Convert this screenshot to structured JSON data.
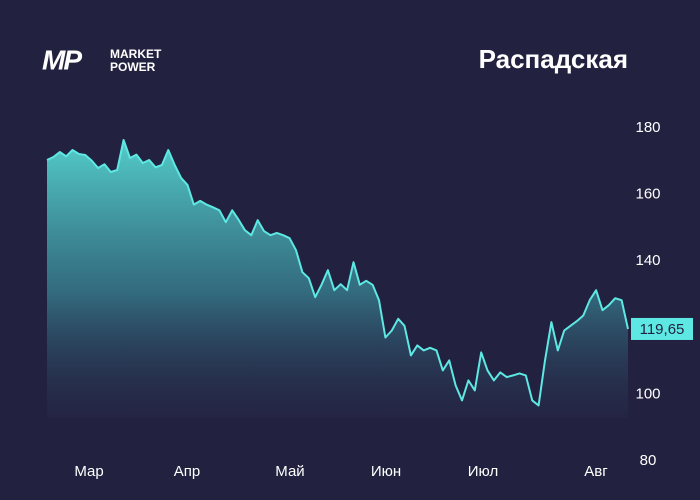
{
  "logo": {
    "mark": "MP",
    "line1": "MARKET",
    "line2": "POWER"
  },
  "chart_data": {
    "type": "area",
    "title": "Распадская",
    "xticks": [
      "Мар",
      "Апр",
      "Май",
      "Июн",
      "Июл",
      "Авг"
    ],
    "series": [
      {
        "name": "Распадская",
        "color": "#5ee8e3",
        "values": [
          170.4,
          171.3,
          172.8,
          171.5,
          173.4,
          172.2,
          171.9,
          170.2,
          168,
          169.1,
          166.8,
          167.4,
          176.4,
          171,
          172,
          169.5,
          170.4,
          168.2,
          168.9,
          173.4,
          168.9,
          165,
          162.9,
          157,
          158.1,
          157,
          156.2,
          155.3,
          151.7,
          155.3,
          152.5,
          149.3,
          147.8,
          152.3,
          149,
          147.8,
          148.5,
          147.8,
          146.9,
          143.3,
          136.7,
          134.9,
          129.2,
          132.9,
          137.3,
          131.3,
          133.1,
          131.3,
          139.7,
          132.9,
          134.1,
          132.9,
          128.3,
          117.1,
          119.2,
          122.7,
          120.6,
          111.7,
          114.7,
          113.2,
          114,
          113.2,
          107.2,
          110.2,
          102.7,
          98.2,
          104.2,
          101.2,
          112.6,
          107.2,
          104.2,
          106.6,
          105.2,
          105.7,
          106.3,
          105.7,
          98.2,
          96.7,
          110.2,
          121.7,
          113.2,
          119.2,
          120.6,
          122,
          123.7,
          128.3,
          131.3,
          125.3,
          126.8,
          128.9,
          128.3,
          119.65
        ]
      }
    ],
    "last_value": {
      "value": 119.65,
      "label": "119,65"
    },
    "ylim": [
      80,
      180
    ],
    "yticks": [
      80,
      100,
      140,
      160,
      180
    ]
  }
}
